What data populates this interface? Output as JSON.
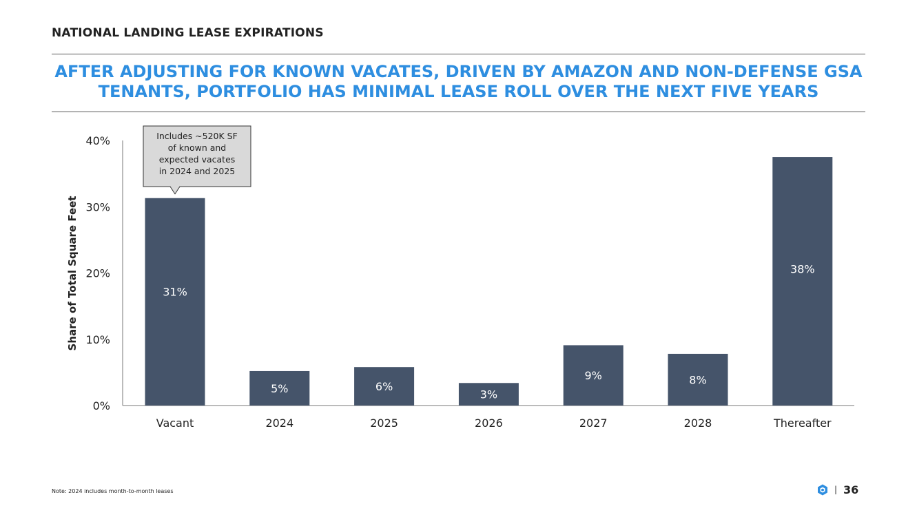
{
  "header": {
    "section_title": "NATIONAL LANDING LEASE EXPIRATIONS",
    "headline_line1": "AFTER ADJUSTING FOR KNOWN VACATES, DRIVEN BY AMAZON AND NON-DEFENSE GSA",
    "headline_line2": "TENANTS, PORTFOLIO HAS MINIMAL LEASE ROLL OVER THE NEXT FIVE YEARS"
  },
  "chart_data": {
    "type": "bar",
    "title": "",
    "xlabel": "",
    "ylabel": "Share of Total Square Feet",
    "categories": [
      "Vacant",
      "2024",
      "2025",
      "2026",
      "2027",
      "2028",
      "Thereafter"
    ],
    "values": [
      31.3,
      5.2,
      5.8,
      3.4,
      9.1,
      7.8,
      37.5
    ],
    "data_labels": [
      "31%",
      "5%",
      "6%",
      "3%",
      "9%",
      "8%",
      "38%"
    ],
    "ylim": [
      0,
      40
    ],
    "yticks": [
      0,
      10,
      20,
      30,
      40
    ],
    "ytick_labels": [
      "0%",
      "10%",
      "20%",
      "30%",
      "40%"
    ],
    "grid": false,
    "bar_color": "#45546a",
    "annotation": {
      "category": "Vacant",
      "lines": [
        "Includes ~520K SF",
        "of known and",
        "expected vacates",
        "in 2024 and 2025"
      ]
    }
  },
  "footer": {
    "note": "Note: 2024 includes month-to-month leases",
    "separator": "|",
    "page_number": "36",
    "logo_icon": "hexagon-logo-icon",
    "logo_color": "#2e8ee0"
  }
}
